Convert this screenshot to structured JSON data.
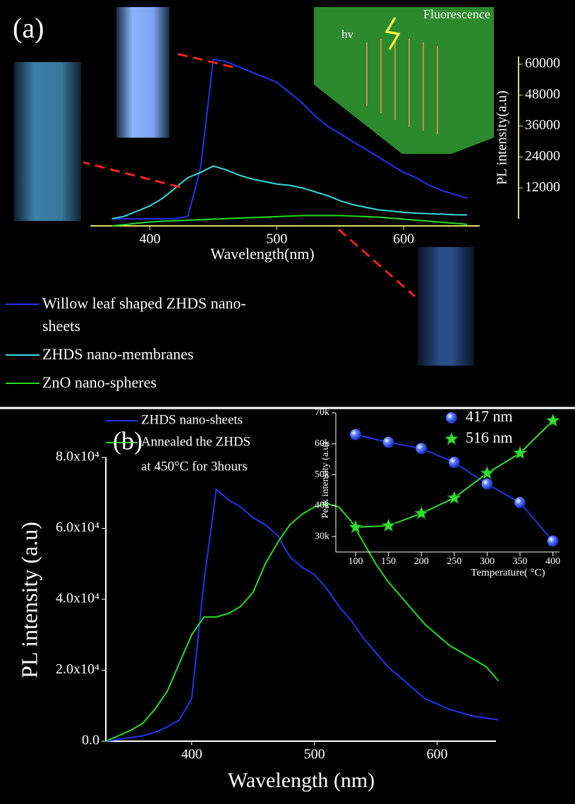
{
  "chart_data": [
    {
      "type": "line",
      "panel_label": "(a)",
      "xlabel": "Wavelength(nm)",
      "ylabel": "PL intensity(a.u)",
      "annotations": [
        "Fluorescence",
        "hv"
      ],
      "x": [
        370,
        380,
        390,
        400,
        410,
        420,
        430,
        440,
        450,
        460,
        470,
        480,
        490,
        500,
        510,
        520,
        530,
        540,
        550,
        560,
        570,
        580,
        590,
        600,
        610,
        620,
        630,
        640,
        650
      ],
      "series": [
        {
          "name": "Willow leaf shaped ZHDS nano-sheets",
          "color": "#2233ee",
          "values": [
            0,
            0,
            0,
            0,
            0,
            0,
            1000,
            20000,
            62000,
            61000,
            59000,
            57000,
            55000,
            53000,
            49000,
            45000,
            40000,
            36000,
            33000,
            30000,
            27000,
            24000,
            21000,
            18000,
            16000,
            13000,
            11000,
            9500,
            8000
          ]
        },
        {
          "name": "ZHDS nano-membranes",
          "color": "#33dddd",
          "values": [
            0,
            1000,
            3000,
            5000,
            8000,
            12000,
            16000,
            18000,
            20500,
            19000,
            17000,
            15500,
            14500,
            13500,
            13000,
            12000,
            10500,
            9000,
            7000,
            5500,
            4500,
            3500,
            3000,
            2500,
            2200,
            2000,
            1800,
            1600,
            1500
          ]
        },
        {
          "name": "ZnO nano-spheres",
          "color": "#22dd22",
          "values": [
            0,
            500,
            1000,
            1500,
            1800,
            2000,
            2200,
            2400,
            2600,
            2800,
            3000,
            3200,
            3400,
            3600,
            3800,
            4000,
            4000,
            4000,
            4000,
            3800,
            3600,
            3400,
            3000,
            2600,
            2200,
            1800,
            1400,
            1000,
            600
          ]
        }
      ],
      "xlim": [
        353,
        660
      ],
      "ylim": [
        0,
        63000
      ],
      "xticks": [
        400,
        500,
        600
      ],
      "yticks": [
        12000,
        24000,
        36000,
        48000,
        60000
      ]
    },
    {
      "type": "line",
      "panel_label": "(b)",
      "xlabel": "Wavelength (nm)",
      "ylabel": "PL intensity (a.u)",
      "annotations": [
        "at 450°C for 3hours"
      ],
      "x": [
        330,
        340,
        350,
        360,
        370,
        380,
        390,
        400,
        410,
        420,
        430,
        440,
        450,
        460,
        470,
        480,
        490,
        500,
        510,
        520,
        530,
        540,
        550,
        560,
        570,
        580,
        590,
        600,
        610,
        620,
        630,
        640,
        650
      ],
      "series": [
        {
          "name": "ZHDS nano-sheets",
          "color": "#2233ee",
          "values": [
            0,
            500,
            1000,
            1500,
            2500,
            4000,
            6000,
            12000,
            45000,
            71000,
            68000,
            66000,
            63000,
            61000,
            58000,
            52000,
            49000,
            47000,
            43000,
            38000,
            34000,
            29000,
            25000,
            21000,
            18000,
            15000,
            12000,
            10500,
            9000,
            8000,
            7000,
            6500,
            6000
          ]
        },
        {
          "name": "Annealed the ZHDS",
          "color": "#22dd22",
          "values": [
            0,
            1500,
            3000,
            5000,
            9000,
            14000,
            22000,
            30000,
            35000,
            35000,
            36000,
            38000,
            42000,
            50000,
            56000,
            61000,
            64000,
            66000,
            67000,
            66000,
            62000,
            56000,
            50000,
            45000,
            41000,
            37000,
            33000,
            30000,
            27000,
            25000,
            23000,
            21000,
            17000
          ]
        }
      ],
      "xlim": [
        330,
        648
      ],
      "ylim": [
        0,
        80000
      ],
      "xticks": [
        400,
        500,
        600
      ],
      "yticks": [
        {
          "value": 0,
          "label": "0.0"
        },
        {
          "value": 20000,
          "label": "2.0x10⁴"
        },
        {
          "value": 40000,
          "label": "4.0x10⁴"
        },
        {
          "value": 60000,
          "label": "6.0x10⁴"
        },
        {
          "value": 80000,
          "label": "8.0x10⁴"
        }
      ]
    },
    {
      "type": "line",
      "xlabel": "Temperature( °C)",
      "ylabel": "Peak intensity (a.u)",
      "x": [
        100,
        150,
        200,
        250,
        300,
        350,
        400
      ],
      "series": [
        {
          "name": "417 nm",
          "color": "#2233dd",
          "marker": "circle",
          "values": [
            63000,
            60500,
            58500,
            54000,
            47000,
            41000,
            28500
          ]
        },
        {
          "name": "516 nm",
          "color": "#33dd33",
          "marker": "star",
          "values": [
            33000,
            33500,
            37500,
            42500,
            50500,
            57000,
            67500
          ]
        }
      ],
      "xlim": [
        70,
        410
      ],
      "ylim": [
        25000,
        70000
      ],
      "xticks": [
        100,
        150,
        200,
        250,
        300,
        350,
        400
      ],
      "yticks": [
        {
          "value": 30000,
          "label": "30k"
        },
        {
          "value": 40000,
          "label": "40k"
        },
        {
          "value": 50000,
          "label": "50k"
        },
        {
          "value": 60000,
          "label": "60k"
        },
        {
          "value": 70000,
          "label": "70k"
        }
      ]
    }
  ]
}
